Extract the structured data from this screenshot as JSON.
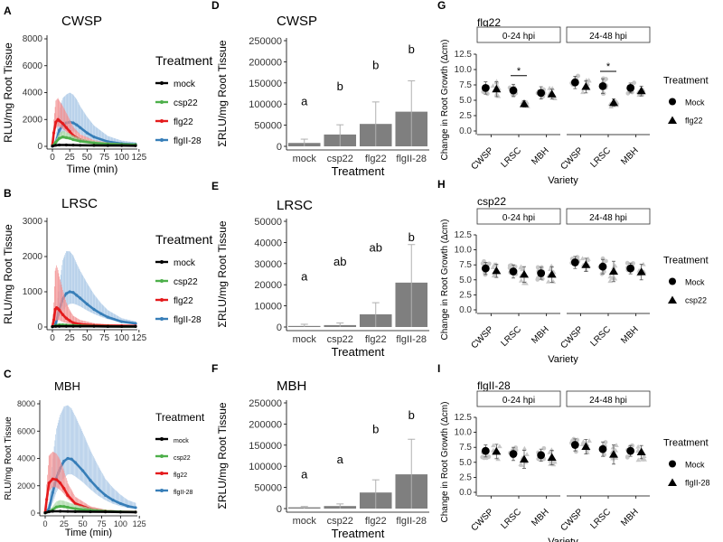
{
  "chart_data": [
    {
      "type": "line",
      "panel_letter": "A",
      "title": "CWSP",
      "xlabel": "Time (min)",
      "ylabel": "RLU/mg Root Tissue",
      "xlim": [
        0,
        120
      ],
      "ylim": [
        0,
        8000
      ],
      "xticks": [
        0,
        25,
        50,
        75,
        100,
        125
      ],
      "yticks": [
        0,
        2000,
        4000,
        6000,
        8000
      ],
      "legend_title": "Treatment",
      "series": [
        {
          "name": "mock",
          "color": "#000000",
          "x": [
            0,
            5,
            10,
            20,
            30,
            40,
            60,
            80,
            100,
            120
          ],
          "y": [
            20,
            80,
            100,
            100,
            90,
            80,
            70,
            60,
            60,
            50
          ],
          "err": [
            10,
            30,
            40,
            40,
            40,
            30,
            30,
            20,
            20,
            20
          ]
        },
        {
          "name": "csp22",
          "color": "#4daf4a",
          "x": [
            0,
            5,
            10,
            15,
            20,
            25,
            30,
            40,
            60,
            80,
            100,
            120
          ],
          "y": [
            30,
            300,
            600,
            700,
            650,
            600,
            500,
            380,
            250,
            180,
            150,
            120
          ],
          "err": [
            20,
            200,
            400,
            450,
            400,
            350,
            300,
            220,
            150,
            100,
            80,
            60
          ]
        },
        {
          "name": "flg22",
          "color": "#e41a1c",
          "x": [
            0,
            2,
            5,
            8,
            10,
            15,
            20,
            25,
            30,
            40,
            60,
            80,
            100,
            120
          ],
          "y": [
            100,
            1000,
            1800,
            2000,
            1900,
            1700,
            1400,
            1100,
            800,
            500,
            250,
            170,
            130,
            110
          ],
          "err": [
            80,
            1000,
            1600,
            1600,
            1500,
            1300,
            1100,
            900,
            650,
            400,
            200,
            120,
            90,
            70
          ]
        },
        {
          "name": "flgII-28",
          "color": "#377eb8",
          "x": [
            0,
            5,
            10,
            15,
            20,
            25,
            30,
            35,
            40,
            50,
            60,
            80,
            100,
            120
          ],
          "y": [
            20,
            300,
            1200,
            1600,
            1750,
            1800,
            1750,
            1600,
            1400,
            1000,
            700,
            350,
            200,
            150
          ],
          "err": [
            20,
            400,
            1500,
            2000,
            2100,
            2200,
            2100,
            1900,
            1600,
            1200,
            850,
            420,
            230,
            150
          ]
        }
      ]
    },
    {
      "type": "line",
      "panel_letter": "B",
      "title": "LRSC",
      "xlabel": "",
      "ylabel": "RLU/mg Root Tissue",
      "xlim": [
        0,
        120
      ],
      "ylim": [
        0,
        3000
      ],
      "xticks": [
        0,
        25,
        50,
        75,
        100,
        125
      ],
      "yticks": [
        0,
        1000,
        2000,
        3000
      ],
      "legend_title": "Treatment",
      "series": [
        {
          "name": "mock",
          "color": "#000000",
          "x": [
            0,
            5,
            10,
            20,
            30,
            40,
            60,
            80,
            100,
            120
          ],
          "y": [
            10,
            20,
            20,
            20,
            20,
            20,
            20,
            15,
            15,
            15
          ],
          "err": [
            5,
            10,
            10,
            10,
            10,
            10,
            10,
            8,
            8,
            8
          ]
        },
        {
          "name": "csp22",
          "color": "#4daf4a",
          "x": [
            0,
            5,
            10,
            15,
            20,
            30,
            40,
            60,
            80,
            100,
            120
          ],
          "y": [
            10,
            40,
            60,
            60,
            55,
            45,
            35,
            25,
            20,
            15,
            15
          ],
          "err": [
            10,
            30,
            40,
            40,
            35,
            30,
            25,
            20,
            15,
            10,
            10
          ]
        },
        {
          "name": "flg22",
          "color": "#e41a1c",
          "x": [
            0,
            2,
            4,
            6,
            8,
            10,
            15,
            20,
            25,
            30,
            40,
            60,
            80,
            100,
            120
          ],
          "y": [
            20,
            200,
            500,
            550,
            520,
            480,
            350,
            250,
            180,
            120,
            80,
            50,
            40,
            35,
            30
          ],
          "err": [
            20,
            500,
            1100,
            1200,
            1100,
            950,
            700,
            450,
            300,
            200,
            120,
            60,
            40,
            30,
            25
          ]
        },
        {
          "name": "flgII-28",
          "color": "#377eb8",
          "x": [
            0,
            5,
            10,
            15,
            20,
            25,
            30,
            35,
            40,
            50,
            60,
            70,
            80,
            100,
            120
          ],
          "y": [
            10,
            100,
            500,
            800,
            950,
            1000,
            980,
            900,
            820,
            650,
            500,
            380,
            280,
            150,
            100
          ],
          "err": [
            10,
            150,
            700,
            1100,
            1200,
            1150,
            1050,
            900,
            780,
            600,
            430,
            300,
            200,
            100,
            60
          ]
        }
      ]
    },
    {
      "type": "line",
      "panel_letter": "C",
      "title": "MBH",
      "xlabel": "Time (min)",
      "ylabel": "RLU/mg Root Tissue",
      "xlim": [
        0,
        120
      ],
      "ylim": [
        0,
        8000
      ],
      "xticks": [
        0,
        25,
        50,
        75,
        100,
        125
      ],
      "yticks": [
        0,
        2000,
        4000,
        6000,
        8000
      ],
      "legend_title": "Treatment",
      "series": [
        {
          "name": "mock",
          "color": "#000000",
          "x": [
            0,
            5,
            10,
            20,
            30,
            40,
            60,
            80,
            100,
            120
          ],
          "y": [
            20,
            100,
            130,
            130,
            120,
            110,
            100,
            90,
            80,
            70
          ],
          "err": [
            10,
            50,
            60,
            60,
            50,
            50,
            40,
            40,
            30,
            30
          ]
        },
        {
          "name": "csp22",
          "color": "#4daf4a",
          "x": [
            0,
            5,
            10,
            15,
            20,
            25,
            30,
            40,
            60,
            80,
            100,
            120
          ],
          "y": [
            20,
            100,
            250,
            450,
            500,
            480,
            420,
            320,
            200,
            130,
            100,
            80
          ],
          "err": [
            20,
            80,
            250,
            400,
            450,
            420,
            380,
            300,
            180,
            110,
            80,
            60
          ]
        },
        {
          "name": "flg22",
          "color": "#e41a1c",
          "x": [
            0,
            2,
            5,
            10,
            15,
            20,
            25,
            30,
            40,
            60,
            80,
            100,
            120
          ],
          "y": [
            80,
            1000,
            2200,
            2500,
            2450,
            2200,
            1800,
            1300,
            700,
            300,
            150,
            100,
            80
          ],
          "err": [
            80,
            1100,
            2000,
            2000,
            1900,
            1700,
            1300,
            900,
            500,
            200,
            100,
            70,
            50
          ]
        },
        {
          "name": "flgII-28",
          "color": "#377eb8",
          "x": [
            0,
            5,
            10,
            15,
            20,
            25,
            30,
            35,
            40,
            50,
            60,
            70,
            80,
            90,
            100,
            110,
            120
          ],
          "y": [
            30,
            300,
            1500,
            2600,
            3300,
            3800,
            4000,
            3950,
            3700,
            3100,
            2400,
            1800,
            1300,
            950,
            700,
            500,
            400
          ],
          "err": [
            30,
            500,
            2500,
            3600,
            3900,
            4000,
            3900,
            3700,
            3400,
            2800,
            2200,
            1700,
            1200,
            900,
            650,
            450,
            350
          ]
        }
      ]
    },
    {
      "type": "bar",
      "panel_letter": "D",
      "title": "CWSP",
      "xlabel": "Treatment",
      "ylabel": "ΣRLU/mg Root Tissue",
      "categories": [
        "mock",
        "csp22",
        "flg22",
        "flgII-28"
      ],
      "values": [
        8000,
        28000,
        53000,
        82000
      ],
      "errors": [
        9000,
        23000,
        52000,
        73000
      ],
      "letters": [
        "a",
        "b",
        "b",
        "b"
      ],
      "ylim": [
        0,
        250000
      ],
      "yticks": [
        0,
        50000,
        100000,
        150000,
        200000,
        250000
      ]
    },
    {
      "type": "bar",
      "panel_letter": "E",
      "title": "LRSC",
      "xlabel": "Treatment",
      "ylabel": "ΣRLU/mg Root Tissue",
      "categories": [
        "mock",
        "csp22",
        "flg22",
        "flgII-28"
      ],
      "values": [
        500,
        900,
        6000,
        21000
      ],
      "errors": [
        800,
        1000,
        5500,
        18000
      ],
      "letters": [
        "a",
        "ab",
        "ab",
        "b"
      ],
      "ylim": [
        0,
        50000
      ],
      "yticks": [
        0,
        10000,
        20000,
        30000,
        40000,
        50000
      ]
    },
    {
      "type": "bar",
      "panel_letter": "F",
      "title": "MBH",
      "xlabel": "Treatment",
      "ylabel": "ΣRLU/mg Root Tissue",
      "categories": [
        "mock",
        "csp22",
        "flg22",
        "flgII-28"
      ],
      "values": [
        3000,
        6000,
        38000,
        81000
      ],
      "errors": [
        2000,
        5000,
        30000,
        83000
      ],
      "letters": [
        "a",
        "a",
        "b",
        "b"
      ],
      "ylim": [
        0,
        250000
      ],
      "yticks": [
        0,
        50000,
        100000,
        150000,
        200000,
        250000
      ]
    },
    {
      "type": "scatter",
      "panel_letter": "G",
      "title": "flg22",
      "xlabel": "Variety",
      "ylabel": "Change in Root Growth (Δcm)",
      "facets": [
        "0-24 hpi",
        "24-48 hpi"
      ],
      "categories": [
        "CWSP",
        "LRSC",
        "MBH"
      ],
      "ylim": [
        0,
        12.5
      ],
      "yticks": [
        0.0,
        2.5,
        5.0,
        7.5,
        10.0,
        12.5
      ],
      "legend_title": "Treatment",
      "legend": [
        "Mock",
        "flg22"
      ],
      "means": {
        "Mock": [
          [
            7.0,
            6.6,
            6.2
          ],
          [
            7.9,
            7.3,
            7.0
          ]
        ],
        "Treated": [
          [
            6.8,
            4.4,
            6.0
          ],
          [
            7.2,
            4.6,
            6.5
          ]
        ]
      },
      "sd": {
        "Mock": [
          [
            1.0,
            1.0,
            1.0
          ],
          [
            1.0,
            1.2,
            0.8
          ]
        ],
        "Treated": [
          [
            1.2,
            0.5,
            0.8
          ],
          [
            1.0,
            0.6,
            0.8
          ]
        ]
      },
      "significance": [
        [
          "LRSC",
          "*"
        ],
        [
          "LRSC",
          "*"
        ]
      ]
    },
    {
      "type": "scatter",
      "panel_letter": "H",
      "title": "csp22",
      "xlabel": "Variety",
      "ylabel": "Change in Root Growth (Δcm)",
      "facets": [
        "0-24 hpi",
        "24-48 hpi"
      ],
      "categories": [
        "CWSP",
        "LRSC",
        "MBH"
      ],
      "ylim": [
        0,
        12.5
      ],
      "yticks": [
        0.0,
        2.5,
        5.0,
        7.5,
        10.0,
        12.5
      ],
      "legend_title": "Treatment",
      "legend": [
        "Mock",
        "csp22"
      ],
      "means": {
        "Mock": [
          [
            6.9,
            6.4,
            6.1
          ],
          [
            7.9,
            7.2,
            6.9
          ]
        ],
        "Treated": [
          [
            6.5,
            5.9,
            5.9
          ],
          [
            7.5,
            6.4,
            6.3
          ]
        ]
      },
      "sd": {
        "Mock": [
          [
            1.0,
            1.1,
            1.0
          ],
          [
            1.0,
            1.2,
            0.9
          ]
        ],
        "Treated": [
          [
            1.1,
            1.3,
            1.3
          ],
          [
            1.1,
            1.7,
            1.3
          ]
        ]
      },
      "significance": []
    },
    {
      "type": "scatter",
      "panel_letter": "I",
      "title": "flgII-28",
      "xlabel": "Variety",
      "ylabel": "Change in Root Growth (Δcm)",
      "facets": [
        "0-24 hpi",
        "24-48 hpi"
      ],
      "categories": [
        "CWSP",
        "LRSC",
        "MBH"
      ],
      "ylim": [
        0,
        12.5
      ],
      "yticks": [
        0.0,
        2.5,
        5.0,
        7.5,
        10.0,
        12.5
      ],
      "legend_title": "Treatment",
      "legend": [
        "Mock",
        "flgII-28"
      ],
      "means": {
        "Mock": [
          [
            6.9,
            6.4,
            6.2
          ],
          [
            7.9,
            7.2,
            6.9
          ]
        ],
        "Treated": [
          [
            6.8,
            5.5,
            5.8
          ],
          [
            7.6,
            6.3,
            6.7
          ]
        ]
      },
      "sd": {
        "Mock": [
          [
            1.0,
            1.1,
            1.0
          ],
          [
            1.0,
            1.2,
            0.9
          ]
        ],
        "Treated": [
          [
            1.2,
            1.5,
            1.2
          ],
          [
            1.2,
            1.6,
            1.1
          ]
        ]
      },
      "significance": []
    }
  ]
}
